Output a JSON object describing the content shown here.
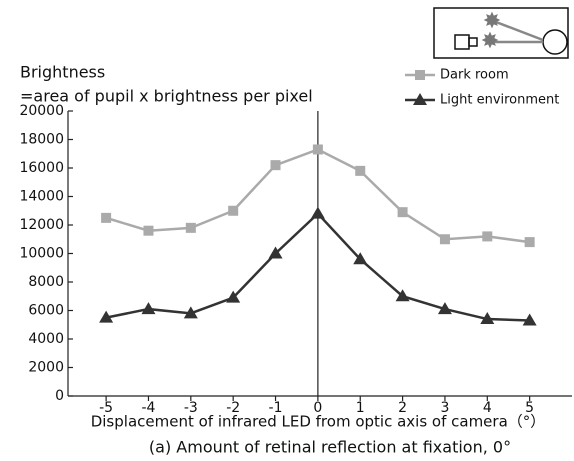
{
  "chart_data": {
    "type": "line",
    "ylabel_lines": [
      "Brightness",
      "=area of pupil x brightness per pixel"
    ],
    "xlabel": "Displacement of infrared LED from optic axis of camera（°）",
    "caption": "(a) Amount of retinal reflection at fixation, 0°",
    "x": [
      -5,
      -4,
      -3,
      -2,
      -1,
      0,
      1,
      2,
      3,
      4,
      5
    ],
    "series": [
      {
        "name": "Dark room",
        "color": "#aaaaaa",
        "marker": "square",
        "values": [
          12500,
          11600,
          11800,
          13000,
          16200,
          17300,
          15800,
          12900,
          11000,
          11200,
          10800
        ]
      },
      {
        "name": "Light environment",
        "color": "#333333",
        "marker": "triangle",
        "values": [
          5500,
          6100,
          5800,
          6900,
          10000,
          12800,
          9600,
          7000,
          6100,
          5400,
          5300
        ]
      }
    ],
    "xlim": [
      -5.9,
      6.0
    ],
    "xticks": [
      -5,
      -4,
      -3,
      -2,
      -1,
      0,
      1,
      2,
      3,
      4,
      5
    ],
    "ylim": [
      0,
      20000
    ],
    "yticks": [
      0,
      2000,
      4000,
      6000,
      8000,
      10000,
      12000,
      14000,
      16000,
      18000,
      20000
    ],
    "grid": false
  }
}
